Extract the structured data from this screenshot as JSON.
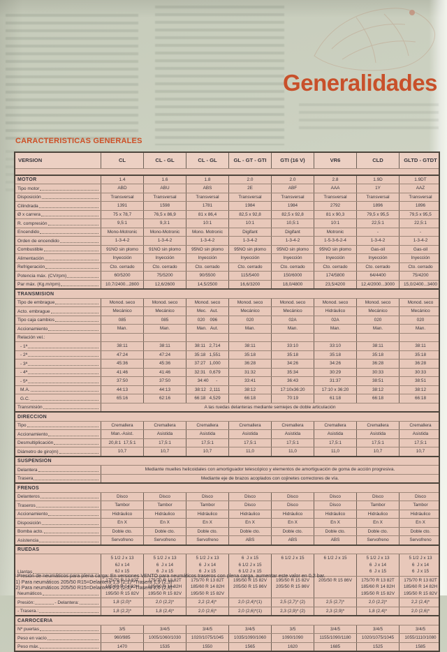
{
  "page": {
    "title": "Generalidades",
    "section_title": "CARACTERISTICAS GENERALES",
    "accent_color": "#c8502a",
    "table_bg_color": "#e8c8ba",
    "paper_color": "#ccd1c1"
  },
  "table": {
    "columns": [
      "VERSION",
      "CL",
      "CL - GL",
      "CL - GL",
      "GL - GT - GTI",
      "GTI (16 V)",
      "VR6",
      "CLD",
      "GLTD - GTDT"
    ],
    "sections": [
      {
        "name": "MOTOR",
        "section_values": [
          "1.4",
          "1.6",
          "1.8",
          "2.0",
          "2.0",
          "2.8",
          "1.9D",
          "1.9DT"
        ],
        "rows": [
          {
            "label": "Tipo motor",
            "values": [
              "ABD",
              "ABU",
              "ABS",
              "2E",
              "ABF",
              "AAA",
              "1Y",
              "AAZ"
            ]
          },
          {
            "label": "Disposición",
            "values": [
              "Transversal",
              "Transversal",
              "Transversal",
              "Transversal",
              "Transversal",
              "Transversal",
              "Transversal",
              "Transversal"
            ]
          },
          {
            "label": "Cilindrada",
            "values": [
              "1391",
              "1598",
              "1781",
              "1984",
              "1984",
              "2792",
              "1896",
              "1896"
            ]
          },
          {
            "label": "Ø x carrera",
            "values": [
              "75 x 78,7",
              "76,5 x 86,9",
              "81 x 86,4",
              "82,5 x 92,8",
              "82,5 x 92,8",
              "81 x 90,3",
              "79,5 x 95,5",
              "79,5 x 95,5"
            ]
          },
          {
            "label": "R. compresión",
            "values": [
              "9,5:1",
              "9,3:1",
              "10:1",
              "10:1",
              "10,5:1",
              "10:1",
              "22,5:1",
              "22,5:1"
            ]
          },
          {
            "label": "Encendido",
            "values": [
              "Mono-Motronic",
              "Mono-Motronic",
              "Mono. Motronic",
              "Digifant",
              "Digifant",
              "Motronic",
              "-",
              "-"
            ]
          },
          {
            "label": "Orden de encendido",
            "values": [
              "1-3-4-2",
              "1-3-4-2",
              "1-3-4-2",
              "1-3-4-2",
              "1-3-4-2",
              "1-5-3-6-2-4",
              "1-3-4-2",
              "1-3-4-2"
            ]
          },
          {
            "label": "Combustible",
            "values": [
              "91NO sin plomo",
              "91NO sin plomo",
              "95NO sin plomo",
              "95NO sin plomo",
              "95NO sin plomo",
              "95NO sin plomo",
              "Gas-oil",
              "Gas-oil"
            ]
          },
          {
            "label": "Alimentación",
            "values": [
              "Inyección",
              "Inyección",
              "Inyección",
              "Inyección",
              "Inyección",
              "Inyección",
              "Inyección",
              "Inyección"
            ]
          },
          {
            "label": "Refrigeración",
            "values": [
              "Cto. cerrado",
              "Cto. cerrado",
              "Cto. cerrado",
              "Cto. cerrado",
              "Cto. cerrado",
              "Cto. cerrado",
              "Cto. cerrado",
              "Cto. cerrado"
            ]
          },
          {
            "label": "Potencia máx. (CV/rpm)",
            "values": [
              "60/5200",
              "75/5200",
              "90/5500",
              "115/5400",
              "150/6000",
              "174/5800",
              "64/4400",
              "75/4200"
            ]
          },
          {
            "label": "Par máx. (Kg.m/rpm)",
            "values": [
              "10,7/2400...2800",
              "12,6/2600",
              "14,5/2500",
              "16,6/3200",
              "18,0/4800",
              "23,5/4200",
              "12,4/2000...3000",
              "15,0/2400...3400"
            ]
          }
        ]
      },
      {
        "name": "TRANSMISION",
        "rows": [
          {
            "label": "Tipo de embrague",
            "values": [
              "Monod. seco",
              "Monod. seco",
              "Monod. seco",
              "Monod. seco",
              "Monod. seco",
              "Monod. seco",
              "Monod. seco",
              "Monod. seco"
            ]
          },
          {
            "label": "Acto. embrague",
            "values": [
              "Mecánico",
              "Mecánico",
              "Mec.   Aut.",
              "Mecánico",
              "Mecánico",
              "Hidráulico",
              "Mecánico",
              "Mecánico"
            ]
          },
          {
            "label": "Tipo caja cambios",
            "values": [
              "085",
              "085",
              "020    096",
              "020",
              "02A",
              "02A",
              "020",
              "020"
            ]
          },
          {
            "label": "Accionamiento",
            "values": [
              "Man.",
              "Man.",
              "Man.   Aut.",
              "Man.",
              "Man.",
              "Man.",
              "Man.",
              "Man."
            ]
          },
          {
            "label": "Relación vel.:",
            "leader": false,
            "values": [
              "",
              "",
              "",
              "",
              "",
              "",
              "",
              ""
            ]
          },
          {
            "label": "- 1ª",
            "indent": true,
            "values": [
              "38:11",
              "38:11",
              "38:11   2,714",
              "38:11",
              "33:10",
              "33:10",
              "38:11",
              "38:11"
            ]
          },
          {
            "label": "- 2ª",
            "indent": true,
            "values": [
              "47:24",
              "47:24",
              "35:18   1,551",
              "35:18",
              "35:18",
              "35:18",
              "35:18",
              "35:18"
            ]
          },
          {
            "label": "- 3ª",
            "indent": true,
            "values": [
              "45:36",
              "45:36",
              "37:27   1,000",
              "36:28",
              "34:26",
              "34:26",
              "36:28",
              "36:28"
            ]
          },
          {
            "label": "- 4ª",
            "indent": true,
            "values": [
              "41:46",
              "41:46",
              "32:31   0,679",
              "31:32",
              "35:34",
              "30:29",
              "30:33",
              "30:33"
            ]
          },
          {
            "label": "- 5ª",
            "indent": true,
            "values": [
              "37:50",
              "37:50",
              "34:40      -",
              "33:41",
              "36:43",
              "31:37",
              "38:51",
              "38:51"
            ]
          },
          {
            "label": "M.A.",
            "indent": true,
            "values": [
              "44:13",
              "44:13",
              "38:12   2,111",
              "38:12",
              "17:10x36:20",
              "17:10 x 36:20",
              "38:12",
              "38:12"
            ]
          },
          {
            "label": "G.C.",
            "indent": true,
            "values": [
              "65:16",
              "62:16",
              "66:18   4,529",
              "66:18",
              "70:19",
              "61:18",
              "66:18",
              "66:18"
            ]
          },
          {
            "label": "Transmisión",
            "span": "A las ruedas delanteras mediante semiejes de doble articulación"
          }
        ]
      },
      {
        "name": "DIRECCION",
        "rows": [
          {
            "label": "Tipo",
            "values": [
              "Cremallera",
              "Cremallera",
              "Cremallera",
              "Cremallera",
              "Cremallera",
              "Cremallera",
              "Cremallera",
              "Cremallera"
            ]
          },
          {
            "label": "Accionamiento",
            "values": [
              "Man.-Asist.",
              "Asistida",
              "Asistida",
              "Asistida",
              "Asistida",
              "Asistida",
              "Asistida",
              "Asistida"
            ]
          },
          {
            "label": "Desmultiplicación",
            "values": [
              "20,8:1  17,5:1",
              "17,5:1",
              "17,5:1",
              "17,5:1",
              "17,5:1",
              "17,5:1",
              "17,5:1",
              "17,5:1"
            ]
          },
          {
            "label": "Diámetro de giro(m)",
            "values": [
              "10,7",
              "10,7",
              "10,7",
              "11,0",
              "11,0",
              "11,0",
              "10,7",
              "10,7"
            ]
          }
        ]
      },
      {
        "name": "SUSPENSION",
        "rows": [
          {
            "label": "Delantera",
            "span": "Mediante muelles helicoidales con amortiguador telescópico y elementos de amortiguación de goma de acción progresiva."
          },
          {
            "label": "Trasera",
            "span": "Mediante eje de brazos acoplados con cojinetes correctores de vía."
          }
        ]
      },
      {
        "name": "FRENOS",
        "rows": [
          {
            "label": "Delanteros",
            "values": [
              "Disco",
              "Disco",
              "Disco",
              "Disco",
              "Disco",
              "Disco",
              "Disco",
              "Disco"
            ]
          },
          {
            "label": "Traseros",
            "values": [
              "Tambor",
              "Tambor",
              "Tambor",
              "Disco",
              "Disco",
              "Disco",
              "Tambor",
              "Tambor"
            ]
          },
          {
            "label": "Accionamiento",
            "values": [
              "Hidráulico",
              "Hidráulico",
              "Hidráulico",
              "Hidráulico",
              "Hidráulico",
              "Hidráulico",
              "Hidráulico",
              "Hidráulico"
            ]
          },
          {
            "label": "Disposición",
            "values": [
              "En X",
              "En X",
              "En X",
              "En X",
              "En X",
              "En X",
              "En X",
              "En X"
            ]
          },
          {
            "label": "Bomba acto.",
            "values": [
              "Doble cto.",
              "Doble cto.",
              "Doble cto.",
              "Doble cto.",
              "Doble cto.",
              "Doble cto.",
              "Doble cto.",
              "Doble cto."
            ]
          },
          {
            "label": "Asistencia",
            "values": [
              "Servofreno",
              "Servofreno",
              "Servofreno",
              "ABS",
              "ABS",
              "ABS",
              "Servofreno",
              "Servofreno"
            ]
          }
        ]
      },
      {
        "name": "RUEDAS",
        "rows": [
          {
            "label": "Llantas",
            "values": [
              "5 1/2 J x 13\n6J x 14\n6J x 15",
              "5 1/2 J x 13\n6  J x 14\n6  J x 15",
              "5 1/2 J x 13\n6  J x 14\n6  J x 15",
              "6  J x 15\n6 1/2 J x 15\n6 1/2 J x 15",
              "6 1/2 J x 15",
              "6 1/2 J x 15",
              "5 1/2 J x 13\n6  J x 14\n6  J x 15",
              "5 1/2 J x 13\n6  J x 14\n6  J x 15"
            ]
          },
          {
            "label": "Neumáticos",
            "values": [
              "175/70 R 13 82T\n185/60 R 14 82H\n195/50 R 15 82V",
              "175/70 R 13 82T\n185/60 R 14 82H\n195/50 R 15 82V",
              "175/70 R 13 82T\n185/60 R 14 82H\n195/50 R 15 82V",
              "195/50 R 15 82V\n205/50 R 15 86V",
              "195/50 R 15 82V\n205/50 R 15 86V",
              "205/50 R 15 86V",
              "175/70 R 13 82T\n185/60 R 14 82H\n195/50 R 15 82V",
              "175/70 R 13 82T\n185/60 R 14 82H\n195/50 R 15 82V"
            ]
          },
          {
            "label": "Presión:",
            "label2": "- Delantera:",
            "values": [
              "1,8 (2,0)*",
              "2,0 (2,2)*",
              "2,2 (2,4)*",
              "2,0 (2,4)*(1)",
              "2,5 (2,7)* (2)",
              "2,5 (2,7)*",
              "2,0 (2,2)*",
              "2,2 (2,4)*"
            ]
          },
          {
            "label": "",
            "label2": "- Trasera.:",
            "values": [
              "1,8 (2,2)*",
              "1,8 (2,4)*",
              "2,0 (2,6)*",
              "2,0 (2,6)*(1)",
              "2,3 (2,9)* (2)",
              "2,3 (2,9)*",
              "1,8 (2,4)*",
              "2,0 (2,6)*"
            ]
          }
        ]
      },
      {
        "name": "CARROCERIA",
        "rows": [
          {
            "label": "Nº puertas",
            "values": [
              "3/5",
              "3/4/5",
              "3/4/5",
              "3/4/5",
              "3/5",
              "3/4/5",
              "3/4/5",
              "3/4/5"
            ]
          },
          {
            "label": "Peso en vacío",
            "values": [
              "960/985",
              "1005/1060/1030",
              "1020/1075/1045",
              "1035/1090/1060",
              "1090/1090",
              "1155/1090/1180",
              "1020/1075/1045",
              "1055/1110/1080"
            ]
          },
          {
            "label": "Peso máx.",
            "values": [
              "1470",
              "1535",
              "1550",
              "1565",
              "1620",
              "1685",
              "1525",
              "1585"
            ]
          }
        ]
      }
    ]
  },
  "footnotes": [
    "* Presión de neumáticos para plena carga: En versiones VENTO para neumáticos traseros con plena carga, aumentar este valor en 0,2 bar.",
    "(1) Para neumáticos 205/50 R15=Delantera 1,9 (2,1)*-Trasera 1,9 (2,3)*",
    "(2) Para neumáticos 205/50 R15=Delantera 2,2 (2,3)*-Trasera 2,0 (2,5)*"
  ]
}
